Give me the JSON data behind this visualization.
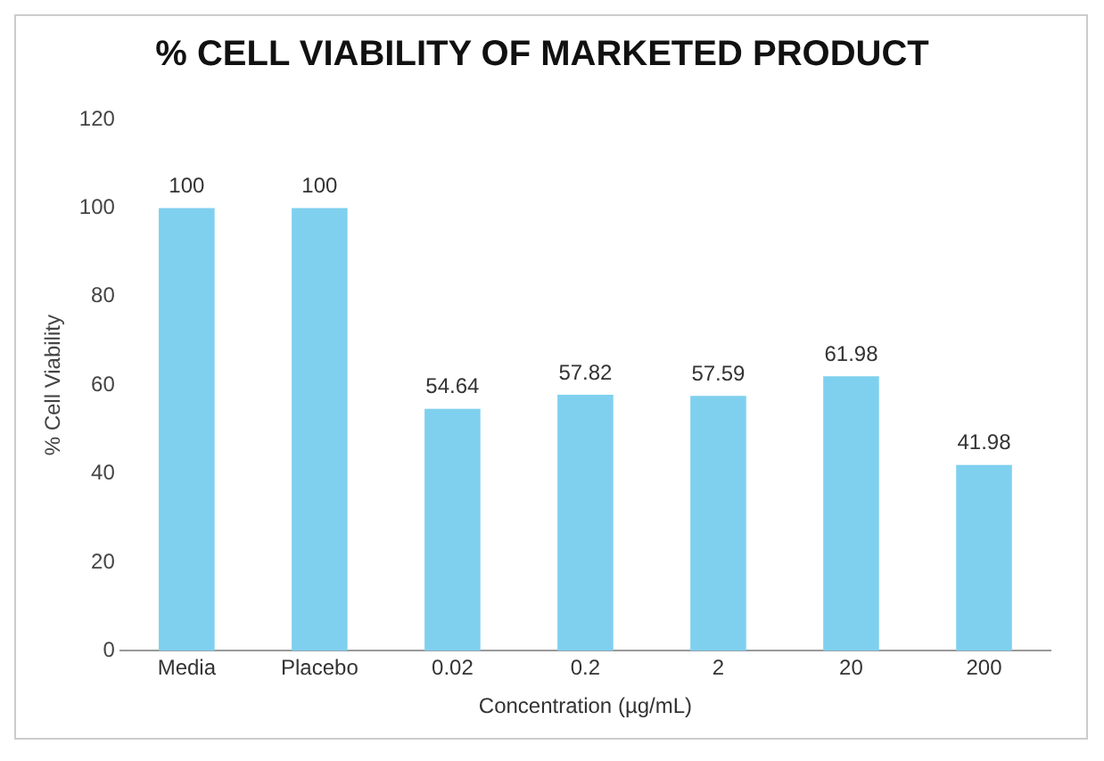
{
  "chart_data": {
    "type": "bar",
    "title": "% CELL VIABILITY OF MARKETED PRODUCT",
    "xlabel": "Concentration (µg/mL)",
    "ylabel": "% Cell Viability",
    "categories": [
      "Media",
      "Placebo",
      "0.02",
      "0.2",
      "2",
      "20",
      "200"
    ],
    "values": [
      100,
      100,
      54.64,
      57.82,
      57.59,
      61.98,
      41.98
    ],
    "color": "#7fd0ee",
    "ylim": [
      0,
      120
    ],
    "yticks": [
      0,
      20,
      40,
      60,
      80,
      100,
      120
    ],
    "grid": false,
    "data_labels": true,
    "legend": false
  }
}
